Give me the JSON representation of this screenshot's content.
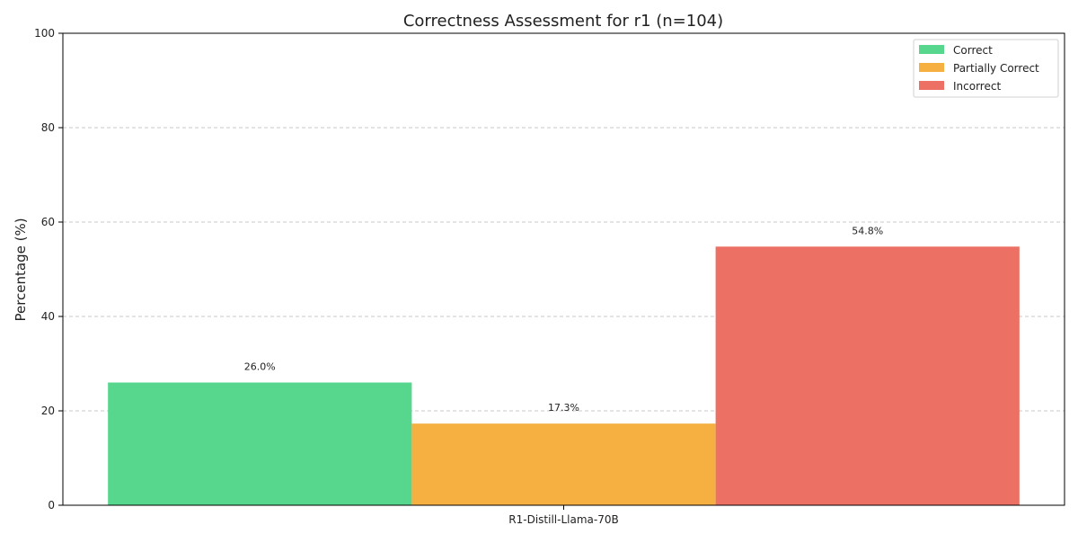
{
  "chart_data": {
    "type": "bar",
    "title": "Correctness Assessment for r1 (n=104)",
    "xlabel": "",
    "ylabel": "Percentage (%)",
    "ylim": [
      0,
      100
    ],
    "yticks": [
      0,
      20,
      40,
      60,
      80,
      100
    ],
    "categories": [
      "R1-Distill-Llama-70B"
    ],
    "grid": "y dashed",
    "legend_position": "top-right",
    "series": [
      {
        "name": "Correct",
        "values": [
          26.0
        ],
        "label": "26.0%",
        "color": "#57d68d"
      },
      {
        "name": "Partially Correct",
        "values": [
          17.3
        ],
        "label": "17.3%",
        "color": "#f5b041"
      },
      {
        "name": "Incorrect",
        "values": [
          54.8
        ],
        "label": "54.8%",
        "color": "#ec7063"
      }
    ]
  }
}
